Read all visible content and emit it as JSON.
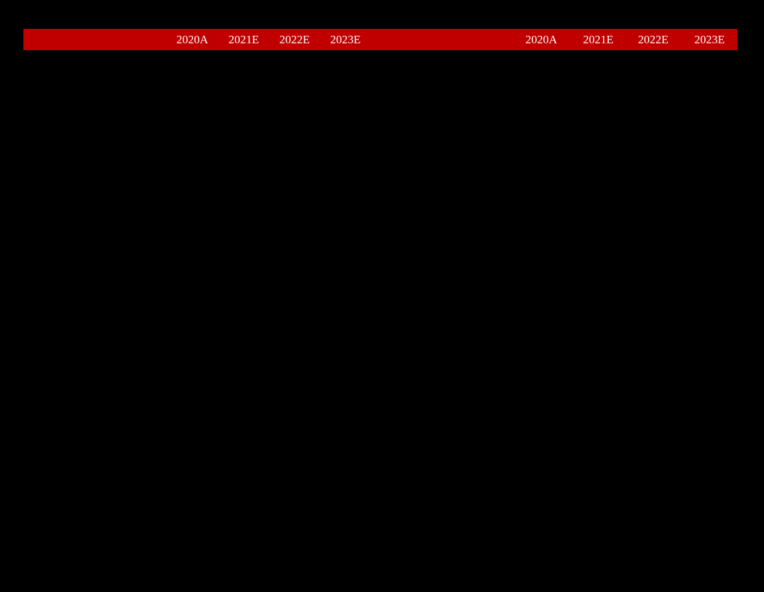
{
  "page": {
    "background_color": "#000000"
  },
  "header_bar": {
    "background_color": "#C00000",
    "text_color": "#FFFFFF",
    "left_group": {
      "years": [
        "2020A",
        "2021E",
        "2022E",
        "2023E"
      ]
    },
    "right_group": {
      "years": [
        "2020A",
        "2021E",
        "2022E",
        "2023E"
      ]
    }
  }
}
